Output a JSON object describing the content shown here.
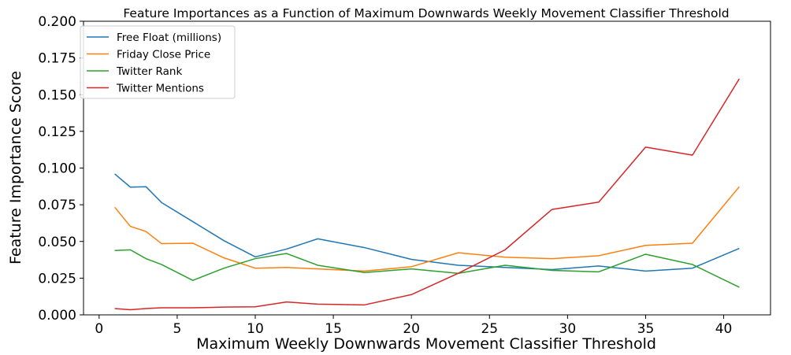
{
  "chart_data": {
    "type": "line",
    "title": "Feature Importances as a Function of Maximum Downwards Weekly Movement Classifier Threshold",
    "xlabel": "Maximum Weekly Downwards Movement Classifier Threshold",
    "ylabel": "Feature Importance Score",
    "xlim": [
      -1,
      43
    ],
    "ylim": [
      0,
      0.2
    ],
    "xticks": [
      0,
      5,
      10,
      15,
      20,
      25,
      30,
      35,
      40
    ],
    "yticks": [
      0.0,
      0.025,
      0.05,
      0.075,
      0.1,
      0.125,
      0.15,
      0.175,
      0.2
    ],
    "xtick_labels": [
      "0",
      "5",
      "10",
      "15",
      "20",
      "25",
      "30",
      "35",
      "40"
    ],
    "ytick_labels": [
      "0.000",
      "0.025",
      "0.050",
      "0.075",
      "0.100",
      "0.125",
      "0.150",
      "0.175",
      "0.200"
    ],
    "grid": false,
    "legend_position": "top-left",
    "series": [
      {
        "name": "Free Float (millions)",
        "color": "#1f77b4",
        "x": [
          1,
          2,
          3,
          4,
          6,
          8,
          10,
          12,
          14,
          17,
          20,
          23,
          26,
          29,
          32,
          35,
          38,
          41
        ],
        "y": [
          0.096,
          0.087,
          0.0873,
          0.0765,
          0.0635,
          0.0505,
          0.0395,
          0.0448,
          0.0518,
          0.0458,
          0.0378,
          0.0338,
          0.0323,
          0.0308,
          0.0333,
          0.0298,
          0.0318,
          0.0453
        ]
      },
      {
        "name": "Friday Close Price",
        "color": "#ff7f0e",
        "x": [
          1,
          2,
          3,
          4,
          6,
          8,
          10,
          12,
          14,
          17,
          20,
          23,
          26,
          29,
          32,
          35,
          38,
          41
        ],
        "y": [
          0.0733,
          0.0603,
          0.0568,
          0.0485,
          0.0488,
          0.0388,
          0.0318,
          0.0323,
          0.0313,
          0.0298,
          0.0328,
          0.0423,
          0.0393,
          0.0383,
          0.0403,
          0.0473,
          0.0488,
          0.0873
        ]
      },
      {
        "name": "Twitter Rank",
        "color": "#2ca02c",
        "x": [
          1,
          2,
          3,
          4,
          6,
          8,
          10,
          12,
          14,
          17,
          20,
          23,
          26,
          29,
          32,
          35,
          38,
          41
        ],
        "y": [
          0.0438,
          0.0443,
          0.0383,
          0.0343,
          0.0235,
          0.0318,
          0.0383,
          0.0418,
          0.0338,
          0.0288,
          0.0313,
          0.0283,
          0.0338,
          0.0303,
          0.0293,
          0.0413,
          0.0343,
          0.0188
        ]
      },
      {
        "name": "Twitter Mentions",
        "color": "#d62728",
        "x": [
          1,
          2,
          3,
          4,
          6,
          8,
          10,
          12,
          14,
          17,
          20,
          23,
          26,
          29,
          32,
          35,
          38,
          41
        ],
        "y": [
          0.0043,
          0.0035,
          0.0043,
          0.0048,
          0.0048,
          0.0053,
          0.0055,
          0.0088,
          0.0073,
          0.0068,
          0.0138,
          0.0283,
          0.0443,
          0.0718,
          0.0768,
          0.1143,
          0.1088,
          0.1608
        ]
      }
    ]
  }
}
